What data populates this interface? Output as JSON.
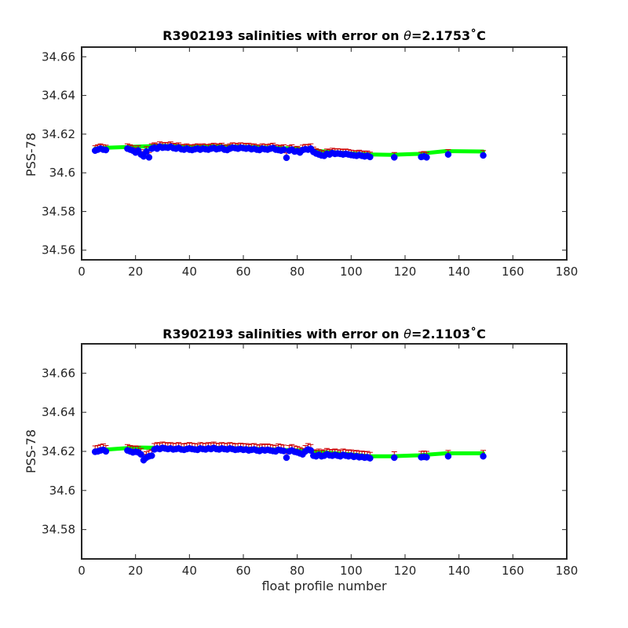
{
  "colors": {
    "fit": "#00ff00",
    "points": "#0000ff",
    "error": "#cc0000",
    "axes": "#262626"
  },
  "chart_data": [
    {
      "type": "scatter",
      "title": "R3902193 salinities with error on θ=2.1753˚C",
      "title_parts": {
        "prefix": "R3902193 salinities with error on ",
        "symbol": "θ",
        "value": "=2.1753",
        "unit": "˚C"
      },
      "xlabel": "",
      "ylabel": "PSS-78",
      "xlim": [
        0,
        180
      ],
      "ylim": [
        34.555,
        34.665
      ],
      "xticks": [
        0,
        20,
        40,
        60,
        80,
        100,
        120,
        140,
        160,
        180
      ],
      "xtick_labels": [
        "0",
        "20",
        "40",
        "60",
        "80",
        "100",
        "120",
        "140",
        "160",
        "180"
      ],
      "yticks": [
        34.56,
        34.58,
        34.6,
        34.62,
        34.64,
        34.66
      ],
      "ytick_labels": [
        "34.56",
        "34.58",
        "34.6",
        "34.62",
        "34.64",
        "34.66"
      ],
      "error_halfwidth": 0.0025,
      "fit_x": [
        5,
        10,
        20,
        30,
        40,
        50,
        60,
        70,
        80,
        90,
        100,
        107,
        115,
        125,
        135,
        149
      ],
      "fit_y": [
        34.6125,
        34.613,
        34.6135,
        34.614,
        34.6135,
        34.6138,
        34.6135,
        34.613,
        34.6125,
        34.611,
        34.61,
        34.6095,
        34.6093,
        34.6098,
        34.6112,
        34.611
      ],
      "x": [
        5,
        6,
        7,
        8,
        9,
        17,
        18,
        19,
        20,
        21,
        22,
        23,
        24,
        25,
        26,
        27,
        28,
        29,
        30,
        31,
        32,
        33,
        34,
        35,
        36,
        37,
        38,
        39,
        40,
        41,
        42,
        43,
        44,
        45,
        46,
        47,
        48,
        49,
        50,
        51,
        52,
        53,
        54,
        55,
        56,
        57,
        58,
        59,
        60,
        61,
        62,
        63,
        64,
        65,
        66,
        67,
        68,
        69,
        70,
        71,
        72,
        73,
        74,
        75,
        76,
        77,
        78,
        79,
        80,
        81,
        82,
        83,
        84,
        85,
        86,
        87,
        88,
        89,
        90,
        91,
        92,
        93,
        94,
        95,
        96,
        97,
        98,
        99,
        100,
        101,
        102,
        103,
        104,
        105,
        106,
        107,
        116,
        126,
        127,
        128,
        136,
        149
      ],
      "y": [
        34.6115,
        34.612,
        34.6125,
        34.612,
        34.6118,
        34.6125,
        34.612,
        34.6115,
        34.6105,
        34.6115,
        34.6095,
        34.6085,
        34.611,
        34.608,
        34.6125,
        34.613,
        34.6125,
        34.6135,
        34.613,
        34.6132,
        34.613,
        34.6135,
        34.6128,
        34.6125,
        34.613,
        34.6122,
        34.612,
        34.6125,
        34.612,
        34.6118,
        34.6122,
        34.6125,
        34.612,
        34.6125,
        34.6122,
        34.612,
        34.6125,
        34.6128,
        34.6122,
        34.6125,
        34.6128,
        34.612,
        34.6118,
        34.6125,
        34.613,
        34.6128,
        34.6125,
        34.613,
        34.6128,
        34.6125,
        34.6128,
        34.6122,
        34.6125,
        34.612,
        34.6118,
        34.6125,
        34.6122,
        34.612,
        34.6125,
        34.6128,
        34.612,
        34.6118,
        34.6115,
        34.612,
        34.6078,
        34.6115,
        34.612,
        34.611,
        34.6112,
        34.6105,
        34.6118,
        34.6122,
        34.612,
        34.6125,
        34.6108,
        34.61,
        34.6095,
        34.609,
        34.6088,
        34.6098,
        34.6095,
        34.6102,
        34.6098,
        34.61,
        34.6098,
        34.6095,
        34.6098,
        34.6095,
        34.6092,
        34.609,
        34.6088,
        34.6092,
        34.6088,
        34.6085,
        34.6088,
        34.6082,
        34.608,
        34.6082,
        34.6085,
        34.608,
        34.6095,
        34.609
      ]
    },
    {
      "type": "scatter",
      "title": "R3902193 salinities with error on θ=2.1103˚C",
      "title_parts": {
        "prefix": "R3902193 salinities with error on ",
        "symbol": "θ",
        "value": "=2.1103",
        "unit": "˚C"
      },
      "xlabel": "float profile number",
      "ylabel": "PSS-78",
      "xlim": [
        0,
        180
      ],
      "ylim": [
        34.565,
        34.675
      ],
      "xticks": [
        0,
        20,
        40,
        60,
        80,
        100,
        120,
        140,
        160,
        180
      ],
      "xtick_labels": [
        "0",
        "20",
        "40",
        "60",
        "80",
        "100",
        "120",
        "140",
        "160",
        "180"
      ],
      "yticks": [
        34.58,
        34.6,
        34.62,
        34.64,
        34.66
      ],
      "ytick_labels": [
        "34.58",
        "34.6",
        "34.62",
        "34.64",
        "34.66"
      ],
      "error_halfwidth": 0.003,
      "fit_x": [
        5,
        10,
        20,
        30,
        40,
        50,
        60,
        70,
        80,
        90,
        100,
        107,
        115,
        125,
        135,
        149
      ],
      "fit_y": [
        34.6205,
        34.621,
        34.622,
        34.6218,
        34.6215,
        34.6218,
        34.6215,
        34.621,
        34.6205,
        34.6195,
        34.6185,
        34.6175,
        34.6175,
        34.618,
        34.619,
        34.619
      ],
      "x": [
        5,
        6,
        7,
        8,
        9,
        17,
        18,
        19,
        20,
        21,
        22,
        23,
        24,
        25,
        26,
        27,
        28,
        29,
        30,
        31,
        32,
        33,
        34,
        35,
        36,
        37,
        38,
        39,
        40,
        41,
        42,
        43,
        44,
        45,
        46,
        47,
        48,
        49,
        50,
        51,
        52,
        53,
        54,
        55,
        56,
        57,
        58,
        59,
        60,
        61,
        62,
        63,
        64,
        65,
        66,
        67,
        68,
        69,
        70,
        71,
        72,
        73,
        74,
        75,
        76,
        77,
        78,
        79,
        80,
        81,
        82,
        83,
        84,
        85,
        86,
        87,
        88,
        89,
        90,
        91,
        92,
        93,
        94,
        95,
        96,
        97,
        98,
        99,
        100,
        101,
        102,
        103,
        104,
        105,
        106,
        107,
        116,
        126,
        127,
        128,
        136,
        149
      ],
      "y": [
        34.6198,
        34.62,
        34.6205,
        34.6208,
        34.62,
        34.6205,
        34.62,
        34.6195,
        34.6198,
        34.6195,
        34.6185,
        34.6155,
        34.6168,
        34.6175,
        34.6178,
        34.621,
        34.6215,
        34.6212,
        34.6218,
        34.6215,
        34.6212,
        34.6215,
        34.621,
        34.6212,
        34.6215,
        34.621,
        34.6208,
        34.6212,
        34.6215,
        34.6212,
        34.621,
        34.6208,
        34.6215,
        34.6212,
        34.621,
        34.6215,
        34.6212,
        34.6218,
        34.6212,
        34.621,
        34.6215,
        34.6212,
        34.621,
        34.6215,
        34.6212,
        34.6208,
        34.621,
        34.6212,
        34.6208,
        34.621,
        34.6205,
        34.6208,
        34.621,
        34.6205,
        34.6202,
        34.6208,
        34.6205,
        34.6208,
        34.6205,
        34.6202,
        34.62,
        34.6208,
        34.6205,
        34.6202,
        34.6168,
        34.62,
        34.6205,
        34.6198,
        34.6195,
        34.619,
        34.6185,
        34.62,
        34.621,
        34.6205,
        34.6178,
        34.6175,
        34.6182,
        34.6175,
        34.6178,
        34.6185,
        34.618,
        34.6178,
        34.6182,
        34.6178,
        34.6175,
        34.6182,
        34.6178,
        34.6175,
        34.6178,
        34.6172,
        34.6175,
        34.617,
        34.6172,
        34.6168,
        34.617,
        34.6165,
        34.6168,
        34.617,
        34.6172,
        34.617,
        34.6175,
        34.6175
      ]
    }
  ]
}
